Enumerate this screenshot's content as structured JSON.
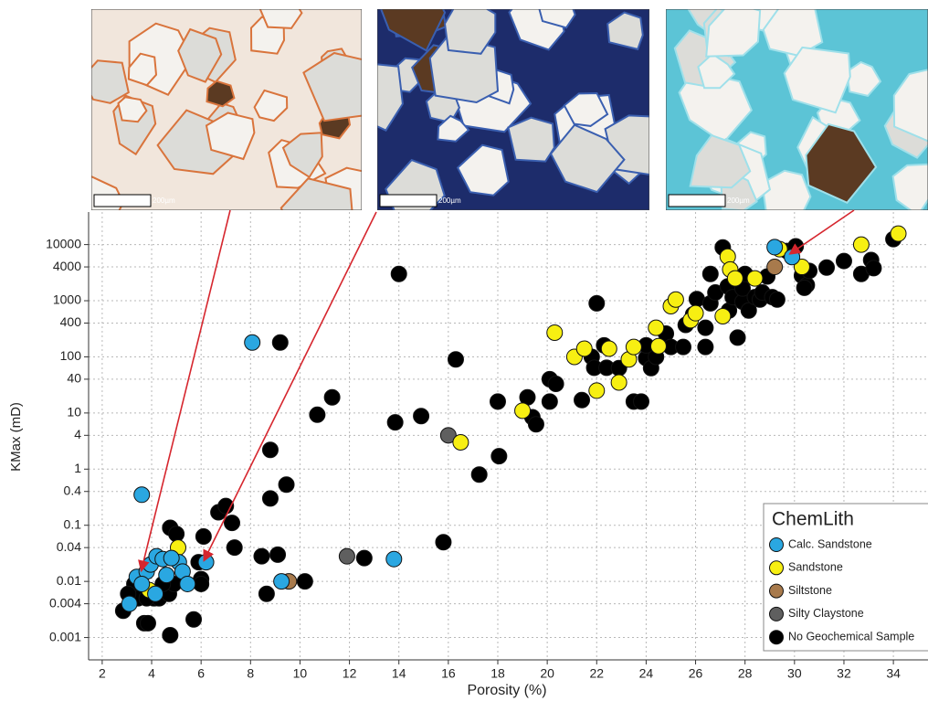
{
  "photo_scale_labels": [
    "200µm",
    "200µm",
    "200µm"
  ],
  "chart_data": {
    "type": "scatter",
    "xlabel": "Porosity (%)",
    "ylabel": "KMax (mD)",
    "xlim": [
      1.45,
      35.4
    ],
    "xticks": [
      2,
      4,
      6,
      8,
      10,
      12,
      14,
      16,
      18,
      20,
      22,
      24,
      26,
      28,
      30,
      32,
      34
    ],
    "ylim": [
      0.0004,
      38000
    ],
    "yticks": [
      0.001,
      0.004,
      0.01,
      0.04,
      0.1,
      0.4,
      1,
      4,
      10,
      40,
      100,
      400,
      1000,
      4000,
      10000
    ],
    "yscale": "log",
    "grid": true,
    "legend_title": "ChemLith",
    "legend_position": "lower right",
    "series": [
      {
        "name": "Calc. Sandstone",
        "color": "#2aa7e1",
        "x": [
          8.07,
          3.6,
          13.8,
          6.2,
          3.1,
          3.4,
          3.8,
          3.96,
          4.2,
          4.45,
          4.6,
          4.15,
          5.1,
          5.25,
          5.45,
          3.6,
          4.8,
          9.25,
          29.2,
          29.9
        ],
        "y": [
          180,
          0.35,
          0.025,
          0.022,
          0.004,
          0.012,
          0.015,
          0.02,
          0.028,
          0.025,
          0.013,
          0.006,
          0.022,
          0.015,
          0.009,
          0.009,
          0.026,
          0.01,
          9000,
          6000
        ]
      },
      {
        "name": "Sandstone",
        "color": "#f7ef12",
        "x": [
          3.9,
          5.07,
          16.5,
          19.0,
          20.3,
          21.1,
          21.5,
          22.0,
          22.5,
          22.9,
          23.3,
          23.5,
          24.4,
          24.5,
          25.0,
          25.2,
          25.8,
          26.0,
          27.1,
          27.3,
          27.4,
          27.6,
          28.4,
          29.4,
          30.3,
          32.7,
          34.2
        ],
        "y": [
          0.007,
          0.04,
          3,
          11,
          270,
          100,
          140,
          25,
          140,
          35,
          90,
          150,
          330,
          155,
          800,
          1050,
          450,
          600,
          530,
          6100,
          3600,
          2500,
          2500,
          8300,
          4000,
          10000,
          15700
        ]
      },
      {
        "name": "Siltstone",
        "color": "#a87a4c",
        "x": [
          9.55,
          29.2
        ],
        "y": [
          0.01,
          4000
        ]
      },
      {
        "name": "Silty Claystone",
        "color": "#5f5f5f",
        "x": [
          16.0,
          11.9
        ],
        "y": [
          4,
          0.028
        ]
      },
      {
        "name": "No Geochemical Sample",
        "color": "#000000",
        "x": [
          2.85,
          3.2,
          3.3,
          3.7,
          3.85,
          4.75,
          5.7,
          4.75,
          5.0,
          4.1,
          4.3,
          4.7,
          4.9,
          4.45,
          3.45,
          3.05,
          3.8,
          5.9,
          6.0,
          6.1,
          6.0,
          6.7,
          7.0,
          7.25,
          7.35,
          8.45,
          9.1,
          8.65,
          10.2,
          12.6,
          15.8,
          8.8,
          8.8,
          9.45,
          9.2,
          10.7,
          11.3,
          13.85,
          14.9,
          14.0,
          16.3,
          17.25,
          18.0,
          18.05,
          19.2,
          19.4,
          19.55,
          20.1,
          20.1,
          20.35,
          22.0,
          21.4,
          21.8,
          22.3,
          21.9,
          22.4,
          22.9,
          23.5,
          23.8,
          24.0,
          24.2,
          24.4,
          24.0,
          24.8,
          25.0,
          25.5,
          25.6,
          25.9,
          26.05,
          26.4,
          26.4,
          26.6,
          26.8,
          26.6,
          27.1,
          27.3,
          27.35,
          27.5,
          27.7,
          27.9,
          27.9,
          28.0,
          28.15,
          28.4,
          28.6,
          28.7,
          28.9,
          29.1,
          29.3,
          29.7,
          30.05,
          30.3,
          30.5,
          30.6,
          30.4,
          31.3,
          32.0,
          32.7,
          33.1,
          33.2,
          34.0
        ],
        "y": [
          0.003,
          0.005,
          0.009,
          0.0018,
          0.0018,
          0.0011,
          0.0021,
          0.09,
          0.07,
          0.005,
          0.005,
          0.006,
          0.009,
          0.009,
          0.005,
          0.006,
          0.005,
          0.022,
          0.011,
          0.063,
          0.009,
          0.17,
          0.22,
          0.11,
          0.04,
          0.028,
          0.03,
          0.006,
          0.01,
          0.026,
          0.05,
          2.2,
          0.3,
          0.53,
          180,
          9.3,
          19,
          6.8,
          8.8,
          3000,
          90,
          0.8,
          16,
          1.7,
          19,
          8.4,
          6.3,
          40,
          16,
          33,
          900,
          17,
          100,
          160,
          64,
          64,
          63,
          16,
          16,
          95,
          63,
          100,
          160,
          260,
          150,
          150,
          370,
          570,
          1070,
          330,
          150,
          900,
          1400,
          3000,
          8900,
          1800,
          670,
          1160,
          220,
          960,
          1650,
          3000,
          670,
          1160,
          1050,
          1400,
          2700,
          1160,
          1050,
          7700,
          9300,
          2800,
          1900,
          3400,
          1700,
          3900,
          5100,
          3000,
          5300,
          3800,
          12500
        ]
      }
    ]
  }
}
